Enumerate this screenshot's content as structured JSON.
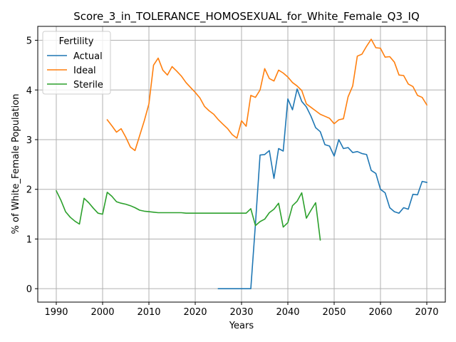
{
  "chart_data": {
    "type": "line",
    "title": "Score_3_in_TOLERANCE_HOMOSEXUAL_for_White_Female_Q3_IQ",
    "xlabel": "Years",
    "ylabel": "% of White_Female Population",
    "xlim": [
      1986,
      2074
    ],
    "ylim": [
      -0.27,
      5.28
    ],
    "xticks": [
      1990,
      2000,
      2010,
      2020,
      2030,
      2040,
      2050,
      2060,
      2070
    ],
    "yticks": [
      0,
      1,
      2,
      3,
      4,
      5
    ],
    "grid": true,
    "legend": {
      "title": "Fertility",
      "position": "top-left"
    },
    "series": [
      {
        "name": "Actual",
        "color": "#1f77b4",
        "x": [
          2025,
          2026,
          2027,
          2028,
          2029,
          2030,
          2031,
          2032,
          2033,
          2034,
          2035,
          2036,
          2037,
          2038,
          2039,
          2040,
          2041,
          2042,
          2043,
          2044,
          2045,
          2046,
          2047,
          2048,
          2049,
          2050,
          2051,
          2052,
          2053,
          2054,
          2055,
          2056,
          2057,
          2058,
          2059,
          2060,
          2061,
          2062,
          2063,
          2064,
          2065,
          2066,
          2067,
          2068,
          2069,
          2070
        ],
        "y": [
          0,
          0,
          0,
          0,
          0,
          0,
          0,
          0,
          1.3,
          2.69,
          2.7,
          2.78,
          2.22,
          2.82,
          2.77,
          3.82,
          3.6,
          4.02,
          3.77,
          3.66,
          3.47,
          3.24,
          3.16,
          2.9,
          2.87,
          2.67,
          3.0,
          2.82,
          2.84,
          2.74,
          2.76,
          2.72,
          2.7,
          2.38,
          2.32,
          2.0,
          1.93,
          1.63,
          1.55,
          1.52,
          1.63,
          1.6,
          1.9,
          1.89,
          2.16,
          2.14
        ]
      },
      {
        "name": "Ideal",
        "color": "#ff7f0e",
        "x": [
          2001,
          2002,
          2003,
          2004,
          2005,
          2006,
          2007,
          2008,
          2009,
          2010,
          2011,
          2012,
          2013,
          2014,
          2015,
          2016,
          2017,
          2018,
          2019,
          2020,
          2021,
          2022,
          2023,
          2024,
          2025,
          2026,
          2027,
          2028,
          2029,
          2030,
          2031,
          2032,
          2033,
          2034,
          2035,
          2036,
          2037,
          2038,
          2039,
          2040,
          2041,
          2042,
          2043,
          2044,
          2045,
          2046,
          2047,
          2048,
          2049,
          2050,
          2051,
          2052,
          2053,
          2054,
          2055,
          2056,
          2057,
          2058,
          2059,
          2060,
          2061,
          2062,
          2063,
          2064,
          2065,
          2066,
          2067,
          2068,
          2069,
          2070
        ],
        "y": [
          3.4,
          3.28,
          3.15,
          3.22,
          3.05,
          2.85,
          2.78,
          3.08,
          3.38,
          3.72,
          4.5,
          4.64,
          4.4,
          4.3,
          4.47,
          4.38,
          4.28,
          4.15,
          4.05,
          3.95,
          3.84,
          3.67,
          3.58,
          3.51,
          3.4,
          3.31,
          3.22,
          3.1,
          3.03,
          3.38,
          3.27,
          3.89,
          3.85,
          4.0,
          4.43,
          4.23,
          4.18,
          4.4,
          4.34,
          4.26,
          4.15,
          4.08,
          3.99,
          3.72,
          3.65,
          3.58,
          3.51,
          3.47,
          3.43,
          3.32,
          3.4,
          3.42,
          3.86,
          4.08,
          4.68,
          4.72,
          4.88,
          5.02,
          4.85,
          4.84,
          4.66,
          4.67,
          4.56,
          4.3,
          4.29,
          4.12,
          4.07,
          3.89,
          3.85,
          3.7
        ]
      },
      {
        "name": "Sterile",
        "color": "#2ca02c",
        "x": [
          1990,
          1991,
          1992,
          1993,
          1994,
          1995,
          1996,
          1997,
          1998,
          1999,
          2000,
          2001,
          2002,
          2003,
          2004,
          2005,
          2006,
          2007,
          2008,
          2009,
          2010,
          2011,
          2012,
          2013,
          2014,
          2015,
          2016,
          2017,
          2018,
          2019,
          2020,
          2021,
          2022,
          2023,
          2024,
          2025,
          2026,
          2027,
          2028,
          2029,
          2030,
          2031,
          2032,
          2033,
          2034,
          2035,
          2036,
          2037,
          2038,
          2039,
          2040,
          2041,
          2042,
          2043,
          2044,
          2045,
          2046,
          2047
        ],
        "y": [
          1.97,
          1.78,
          1.55,
          1.44,
          1.36,
          1.3,
          1.82,
          1.73,
          1.62,
          1.52,
          1.5,
          1.94,
          1.86,
          1.75,
          1.72,
          1.7,
          1.67,
          1.63,
          1.58,
          1.56,
          1.55,
          1.54,
          1.53,
          1.53,
          1.53,
          1.53,
          1.53,
          1.53,
          1.52,
          1.52,
          1.52,
          1.52,
          1.52,
          1.52,
          1.52,
          1.52,
          1.52,
          1.52,
          1.52,
          1.52,
          1.52,
          1.52,
          1.61,
          1.27,
          1.35,
          1.4,
          1.53,
          1.6,
          1.72,
          1.24,
          1.33,
          1.67,
          1.76,
          1.93,
          1.42,
          1.58,
          1.73,
          0.98
        ]
      }
    ]
  }
}
